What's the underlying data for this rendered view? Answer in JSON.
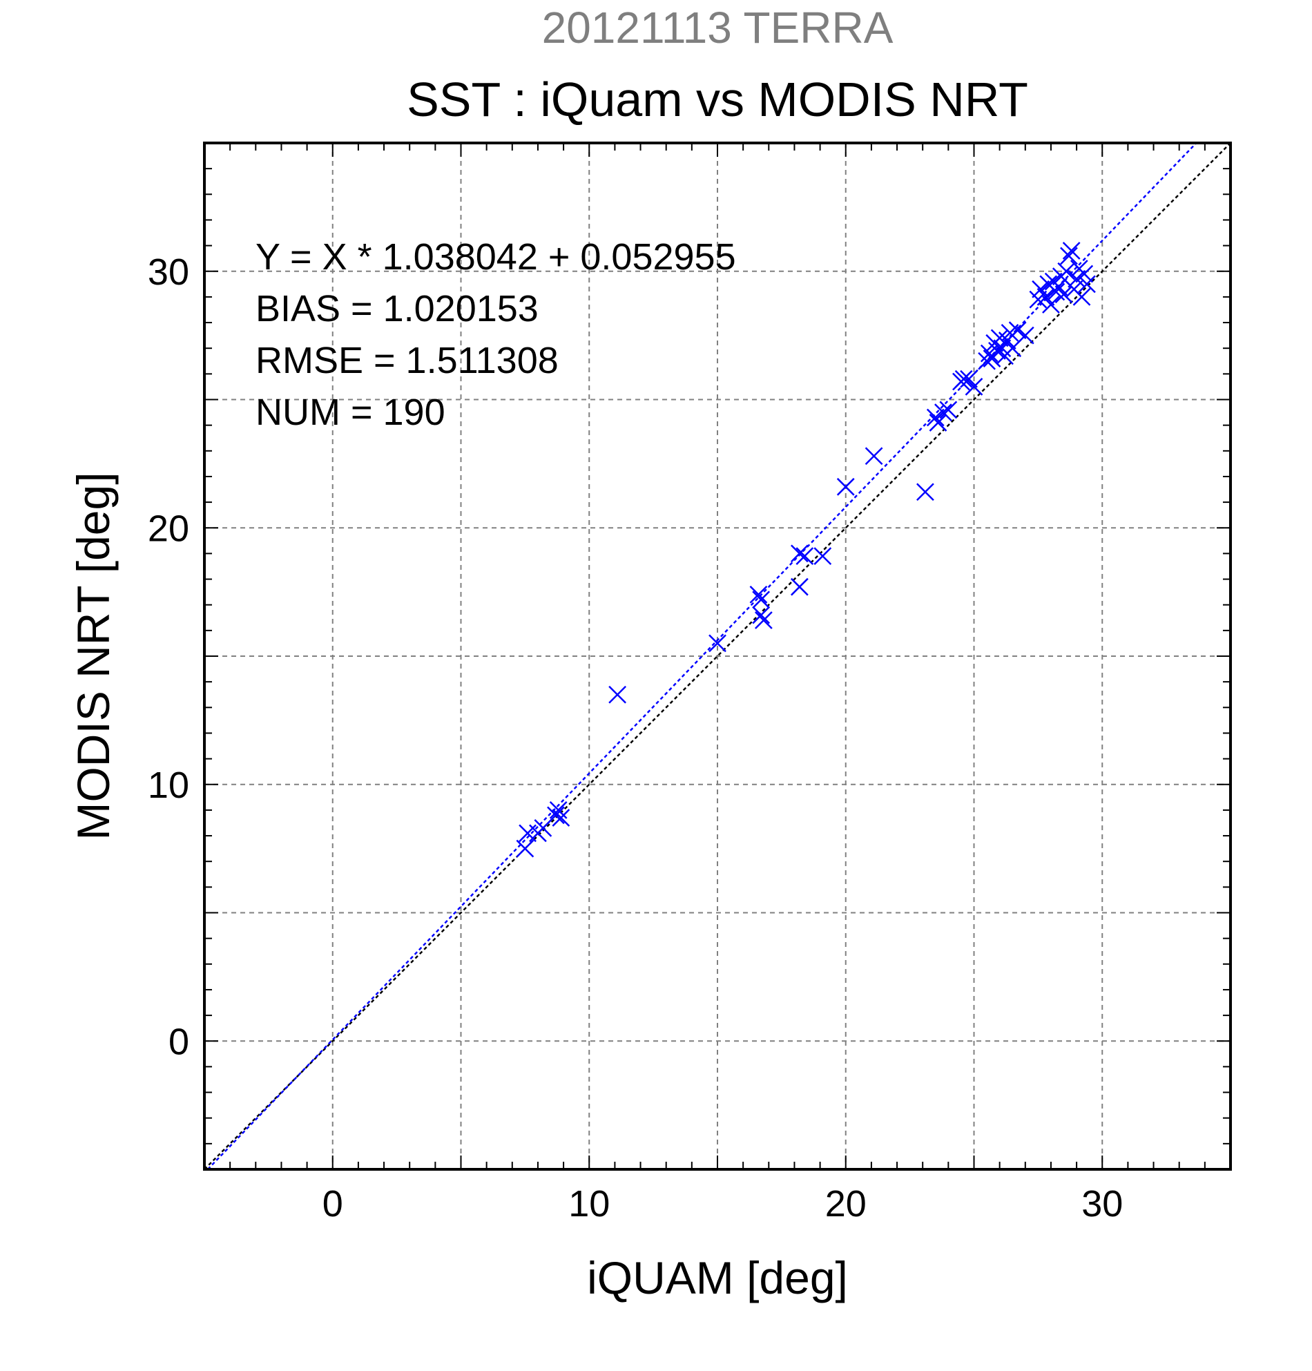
{
  "chart_data": {
    "type": "scatter",
    "supertitle": "20121113 TERRA",
    "title": "SST : iQuam vs MODIS NRT",
    "xlabel": "iQUAM [deg]",
    "ylabel": "MODIS NRT [deg]",
    "xlim": [
      -5,
      35
    ],
    "ylim": [
      -5,
      35
    ],
    "x_ticks": [
      0,
      10,
      20,
      30
    ],
    "y_ticks": [
      0,
      10,
      20,
      30
    ],
    "x_tick_labels": [
      "0",
      "10",
      "20",
      "30"
    ],
    "y_tick_labels": [
      "0",
      "10",
      "20",
      "30"
    ],
    "grid_step": 5,
    "grid": true,
    "stats": {
      "equation": "Y = X * 1.038042 + 0.052955",
      "bias": "BIAS = 1.020153",
      "rmse": "RMSE = 1.511308",
      "num": "NUM = 190"
    },
    "fit": {
      "slope": 1.038042,
      "intercept": 0.052955,
      "color": "#0000ff"
    },
    "identity_line": {
      "color": "#000000"
    },
    "marker": {
      "symbol": "x",
      "color": "#0000ff"
    },
    "points": [
      [
        7.5,
        7.5
      ],
      [
        7.6,
        8.1
      ],
      [
        8.0,
        8.1
      ],
      [
        8.2,
        8.3
      ],
      [
        8.7,
        8.8
      ],
      [
        8.8,
        9.0
      ],
      [
        8.9,
        8.7
      ],
      [
        11.1,
        13.5
      ],
      [
        15.0,
        15.5
      ],
      [
        16.6,
        17.4
      ],
      [
        16.7,
        17.2
      ],
      [
        16.7,
        16.6
      ],
      [
        16.8,
        16.4
      ],
      [
        18.2,
        17.7
      ],
      [
        18.2,
        19.0
      ],
      [
        18.4,
        18.9
      ],
      [
        19.1,
        18.9
      ],
      [
        20.0,
        21.6
      ],
      [
        21.1,
        22.8
      ],
      [
        23.1,
        21.4
      ],
      [
        23.5,
        24.3
      ],
      [
        23.6,
        24.1
      ],
      [
        23.8,
        24.5
      ],
      [
        24.0,
        24.6
      ],
      [
        24.5,
        25.7
      ],
      [
        24.6,
        25.8
      ],
      [
        24.8,
        25.8
      ],
      [
        25.0,
        25.5
      ],
      [
        25.5,
        26.5
      ],
      [
        25.6,
        26.8
      ],
      [
        25.7,
        26.6
      ],
      [
        25.8,
        27.2
      ],
      [
        25.9,
        26.9
      ],
      [
        26.0,
        27.4
      ],
      [
        26.1,
        27.0
      ],
      [
        26.2,
        26.7
      ],
      [
        26.3,
        27.3
      ],
      [
        26.4,
        27.6
      ],
      [
        26.5,
        27.0
      ],
      [
        26.7,
        27.7
      ],
      [
        27.0,
        27.5
      ],
      [
        27.5,
        28.9
      ],
      [
        27.6,
        29.3
      ],
      [
        27.8,
        29.0
      ],
      [
        27.9,
        29.5
      ],
      [
        28.0,
        28.7
      ],
      [
        28.1,
        29.6
      ],
      [
        28.2,
        29.2
      ],
      [
        28.3,
        29.4
      ],
      [
        28.4,
        29.8
      ],
      [
        28.5,
        29.1
      ],
      [
        28.6,
        30.0
      ],
      [
        28.7,
        30.6
      ],
      [
        28.8,
        30.8
      ],
      [
        28.9,
        29.3
      ],
      [
        29.0,
        29.7
      ],
      [
        29.1,
        30.1
      ],
      [
        29.2,
        29.0
      ],
      [
        29.3,
        29.9
      ],
      [
        29.4,
        29.5
      ]
    ]
  }
}
